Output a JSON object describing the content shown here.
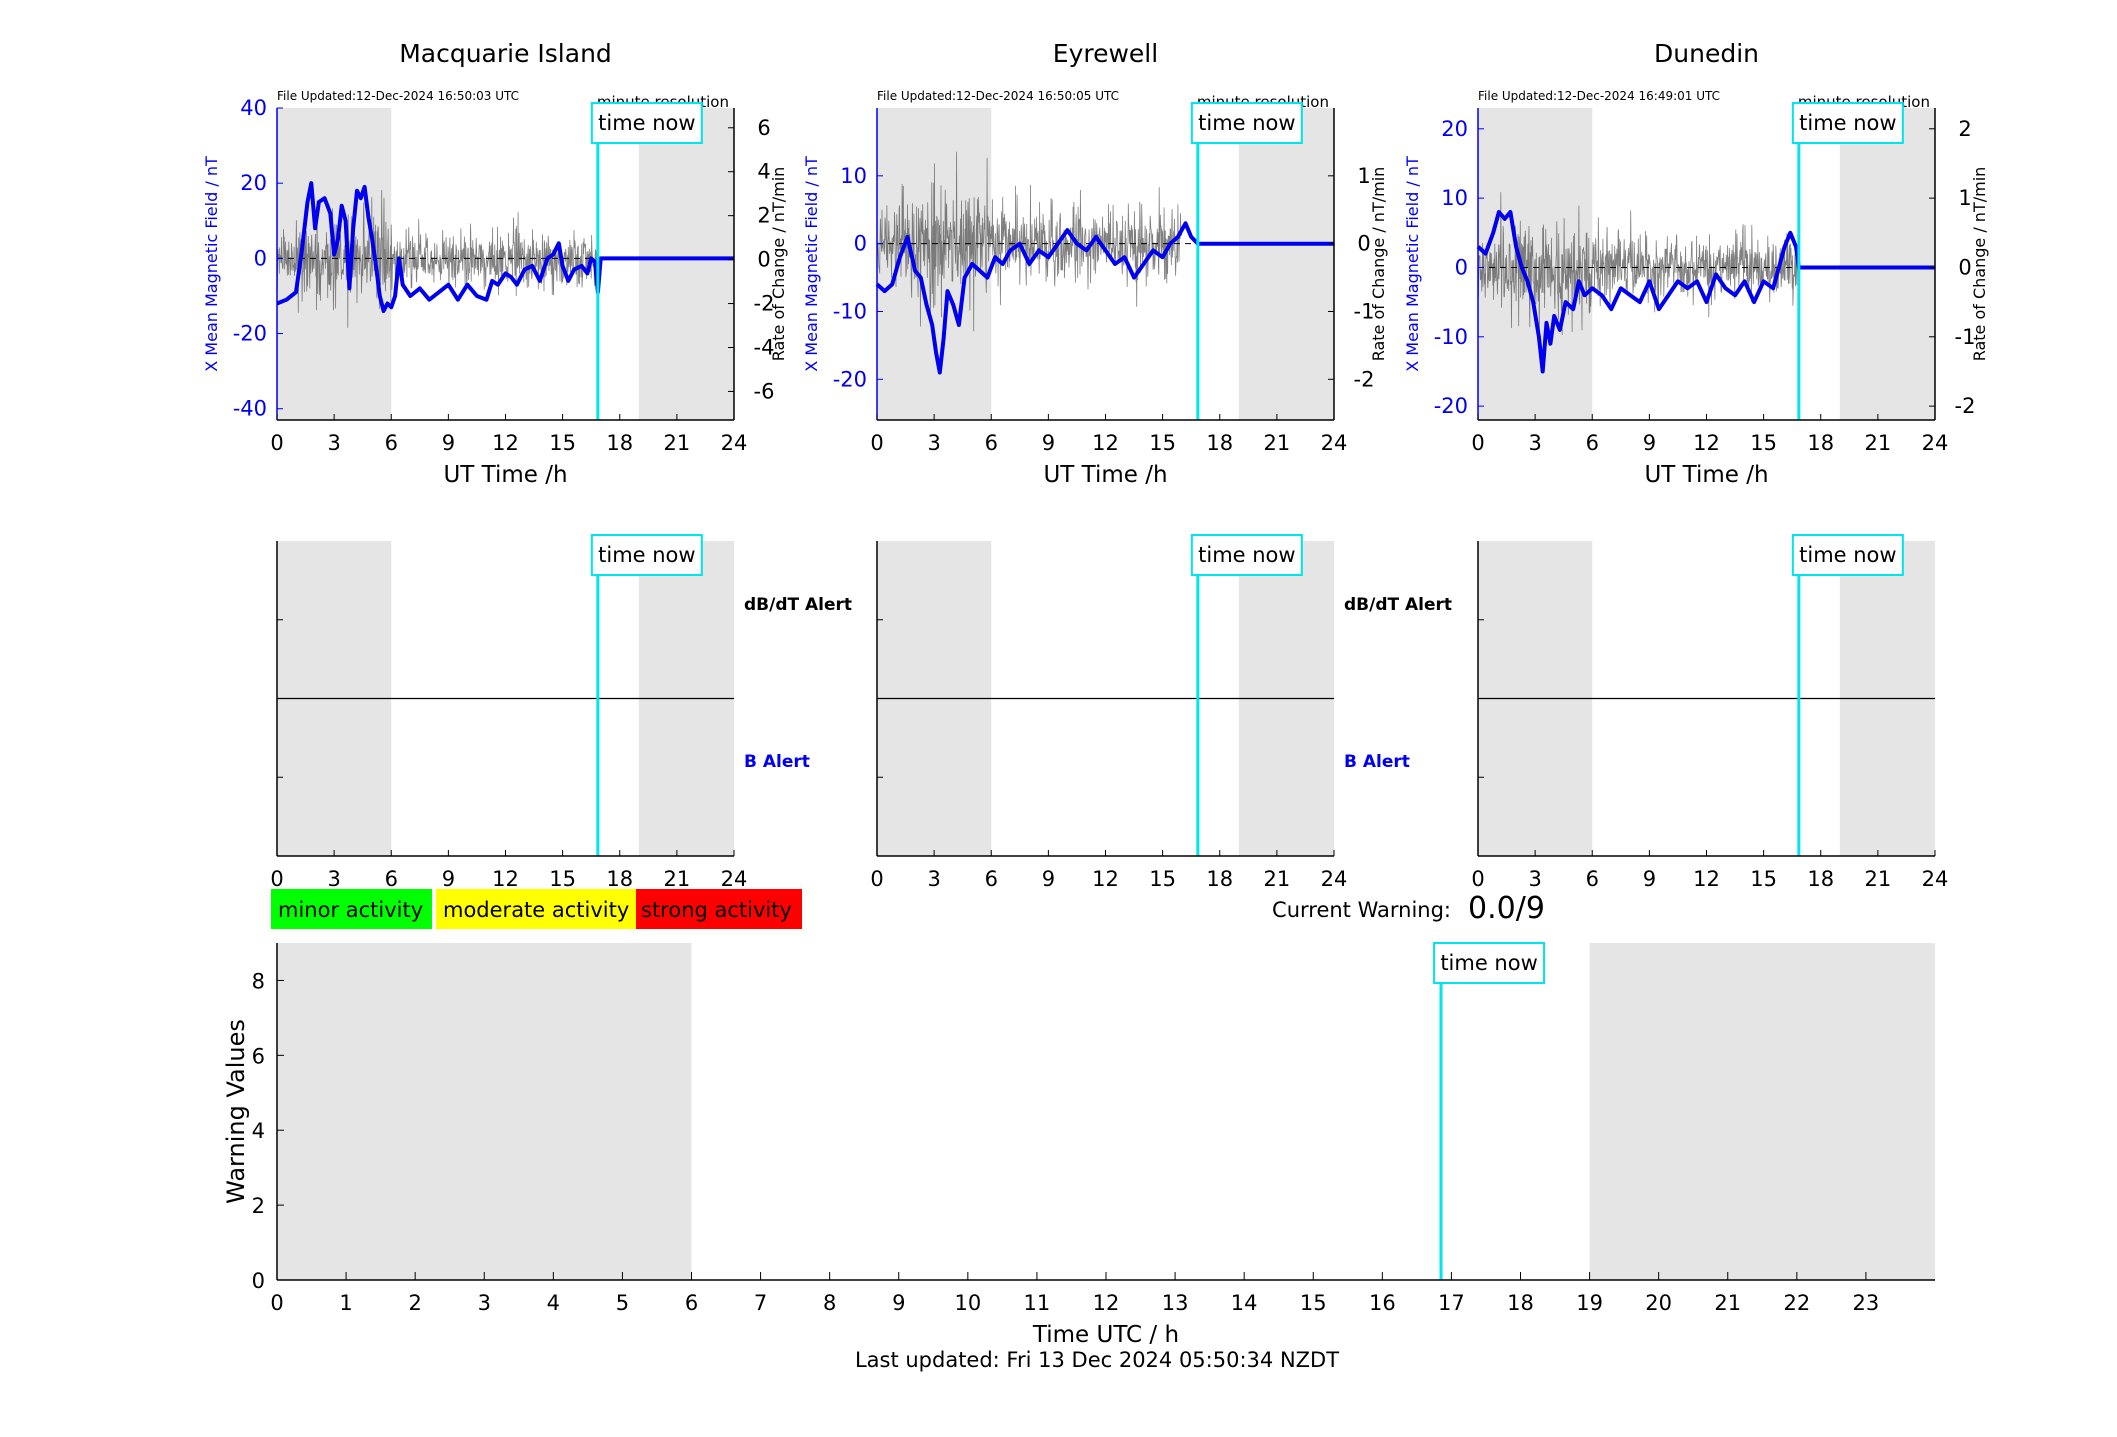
{
  "colors": {
    "field_line": "#0000ee",
    "rate_line": "#222222",
    "time_now": "#00e5ee",
    "shade": "#e5e5e5",
    "minor": "#00ff00",
    "moderate": "#ffff00",
    "strong": "#ff0000",
    "b_alert": "#0000ee"
  },
  "labels": {
    "xlabel_small": "UT Time /h",
    "ylabel_left": "X Mean Magnetic Field / nT",
    "ylabel_right": "Rate of Change / nT/min",
    "resolution": "minute resolution",
    "time_now": "time now",
    "dbdt_alert": "dB/dT Alert",
    "b_alert": "B Alert"
  },
  "legend": {
    "minor": "minor activity",
    "moderate": "moderate activity",
    "strong": "strong activity"
  },
  "current_warning": {
    "label": "Current Warning:",
    "value": "0.0/9"
  },
  "footer": {
    "last_updated": "Last updated: Fri 13 Dec 2024 05:50:34 NZDT"
  },
  "chart_data": [
    {
      "type": "line",
      "title": "Macquarie Island",
      "file_updated": "File Updated:12-Dec-2024 16:50:03 UTC",
      "xlabel": "UT Time /h",
      "xlim": [
        0,
        24
      ],
      "xticks": [
        0,
        3,
        6,
        9,
        12,
        15,
        18,
        21,
        24
      ],
      "ylabel": "X Mean Magnetic Field / nT",
      "ylim": [
        -43,
        40
      ],
      "yticks": [
        -40,
        -20,
        0,
        20,
        40
      ],
      "y2label": "Rate of Change / nT/min",
      "y2lim": [
        -7.3,
        6.9
      ],
      "y2ticks": [
        -6,
        -4,
        -2,
        0,
        2,
        4,
        6
      ],
      "shaded_hours": [
        [
          0,
          6
        ],
        [
          19,
          24
        ]
      ],
      "time_now": 16.85,
      "field_series": {
        "name": "X Mean Magnetic Field",
        "x": [
          0,
          0.5,
          1,
          1.3,
          1.6,
          1.8,
          2,
          2.2,
          2.5,
          2.8,
          3,
          3.2,
          3.4,
          3.6,
          3.8,
          4,
          4.2,
          4.4,
          4.6,
          4.8,
          5,
          5.2,
          5.4,
          5.6,
          5.8,
          6,
          6.2,
          6.4,
          6.6,
          7,
          7.5,
          8,
          8.5,
          9,
          9.5,
          10,
          10.5,
          11,
          11.3,
          11.6,
          12,
          12.3,
          12.6,
          13,
          13.4,
          13.8,
          14.2,
          14.5,
          14.8,
          15,
          15.3,
          15.6,
          16,
          16.3,
          16.5,
          16.7,
          16.85,
          17,
          20,
          24
        ],
        "y": [
          -12,
          -11,
          -9,
          2,
          15,
          20,
          8,
          15,
          16,
          12,
          1,
          5,
          14,
          10,
          -8,
          8,
          18,
          16,
          19,
          11,
          5,
          -2,
          -10,
          -14,
          -12,
          -13,
          -10,
          0,
          -7,
          -10,
          -8,
          -11,
          -9,
          -7,
          -11,
          -7,
          -10,
          -11,
          -6,
          -7,
          -4,
          -5,
          -7,
          -3,
          -2,
          -6,
          0,
          1,
          4,
          -2,
          -6,
          -3,
          -2,
          -4,
          0,
          -1,
          -9,
          0,
          0,
          0
        ]
      },
      "rate_series": {
        "name": "Rate of Change",
        "amplitude": 2.0,
        "until_hour": 16.85
      }
    },
    {
      "type": "line",
      "title": "Eyrewell",
      "file_updated": "File Updated:12-Dec-2024 16:50:05 UTC",
      "xlabel": "UT Time /h",
      "xlim": [
        0,
        24
      ],
      "xticks": [
        0,
        3,
        6,
        9,
        12,
        15,
        18,
        21,
        24
      ],
      "ylabel": "X Mean Magnetic Field / nT",
      "ylim": [
        -26,
        20
      ],
      "yticks": [
        -20,
        -10,
        0,
        10
      ],
      "y2label": "Rate of Change / nT/min",
      "y2lim": [
        -2.6,
        2.0
      ],
      "y2ticks": [
        -2,
        -1,
        0,
        1
      ],
      "shaded_hours": [
        [
          0,
          6
        ],
        [
          19,
          24
        ]
      ],
      "time_now": 16.85,
      "field_series": {
        "name": "X Mean Magnetic Field",
        "x": [
          0,
          0.4,
          0.8,
          1.2,
          1.6,
          2,
          2.3,
          2.6,
          2.9,
          3.1,
          3.3,
          3.5,
          3.7,
          4,
          4.3,
          4.6,
          5,
          5.4,
          5.8,
          6.2,
          6.6,
          7,
          7.5,
          8,
          8.5,
          9,
          9.5,
          10,
          10.5,
          11,
          11.5,
          12,
          12.5,
          13,
          13.5,
          14,
          14.5,
          15,
          15.4,
          15.8,
          16.2,
          16.5,
          16.85,
          18,
          20,
          24
        ],
        "y": [
          -6,
          -7,
          -6,
          -2,
          1,
          -4,
          -5,
          -9,
          -12,
          -16,
          -19,
          -14,
          -7,
          -9,
          -12,
          -5,
          -3,
          -4,
          -5,
          -2,
          -3,
          -1,
          0,
          -3,
          -1,
          -2,
          0,
          2,
          0,
          -1,
          1,
          -1,
          -3,
          -2,
          -5,
          -3,
          -1,
          -2,
          0,
          1,
          3,
          1,
          0,
          0,
          0,
          0
        ]
      },
      "rate_series": {
        "name": "Rate of Change",
        "amplitude": 0.9,
        "until_hour": 16.0
      }
    },
    {
      "type": "line",
      "title": "Dunedin",
      "file_updated": "File Updated:12-Dec-2024 16:49:01 UTC",
      "xlabel": "UT Time /h",
      "xlim": [
        0,
        24
      ],
      "xticks": [
        0,
        3,
        6,
        9,
        12,
        15,
        18,
        21,
        24
      ],
      "ylabel": "X Mean Magnetic Field / nT",
      "ylim": [
        -22,
        23
      ],
      "yticks": [
        -20,
        -10,
        0,
        10,
        20
      ],
      "y2label": "Rate of Change / nT/min",
      "y2lim": [
        -2.2,
        2.3
      ],
      "y2ticks": [
        -2,
        -1,
        0,
        1,
        2
      ],
      "shaded_hours": [
        [
          0,
          6
        ],
        [
          19,
          24
        ]
      ],
      "time_now": 16.85,
      "field_series": {
        "name": "X Mean Magnetic Field",
        "x": [
          0,
          0.4,
          0.8,
          1.1,
          1.4,
          1.7,
          2,
          2.3,
          2.6,
          2.9,
          3.2,
          3.4,
          3.6,
          3.8,
          4,
          4.3,
          4.6,
          5,
          5.3,
          5.6,
          6,
          6.5,
          7,
          7.5,
          8,
          8.5,
          9,
          9.5,
          10,
          10.5,
          11,
          11.5,
          12,
          12.5,
          13,
          13.5,
          14,
          14.5,
          15,
          15.5,
          15.8,
          16.1,
          16.4,
          16.7,
          16.85,
          18,
          20,
          24
        ],
        "y": [
          3,
          2,
          5,
          8,
          7,
          8,
          3,
          0,
          -2,
          -5,
          -10,
          -15,
          -8,
          -11,
          -7,
          -9,
          -5,
          -6,
          -2,
          -4,
          -3,
          -4,
          -6,
          -3,
          -4,
          -5,
          -2,
          -6,
          -4,
          -2,
          -3,
          -2,
          -5,
          -1,
          -3,
          -4,
          -2,
          -5,
          -2,
          -3,
          0,
          3,
          5,
          3,
          0,
          0,
          0,
          0
        ]
      },
      "rate_series": {
        "name": "Rate of Change",
        "amplitude": 0.75,
        "until_hour": 16.85
      }
    },
    {
      "type": "line",
      "title": "",
      "xlabel": "Time UTC / h",
      "xlim": [
        0,
        24
      ],
      "xticks": [
        0,
        1,
        2,
        3,
        4,
        5,
        6,
        7,
        8,
        9,
        10,
        11,
        12,
        13,
        14,
        15,
        16,
        17,
        18,
        19,
        20,
        21,
        22,
        23
      ],
      "ylabel": "Warning Values",
      "ylim": [
        0,
        9
      ],
      "yticks": [
        0,
        2,
        4,
        6,
        8
      ],
      "shaded_hours": [
        [
          0,
          6
        ],
        [
          19,
          24
        ]
      ],
      "time_now": 16.85,
      "series": []
    }
  ]
}
